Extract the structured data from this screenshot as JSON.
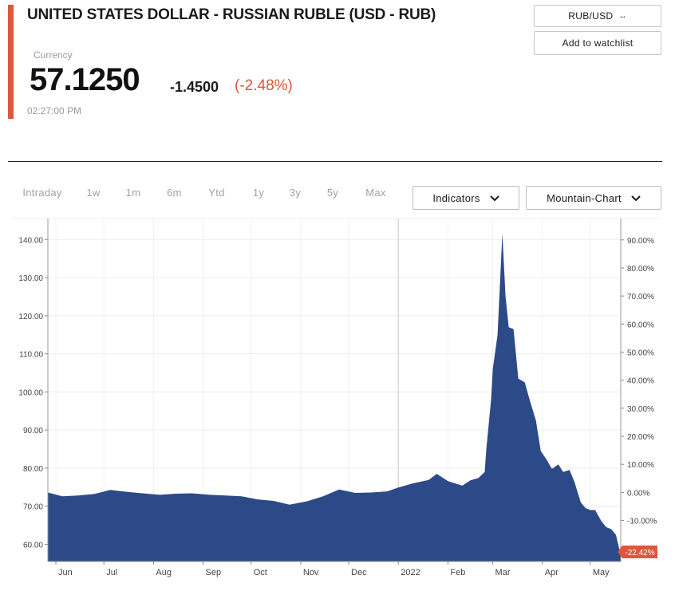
{
  "header": {
    "title": "UNITED STATES DOLLAR - RUSSIAN RUBLE (USD - RUB)",
    "subtype": "Currency",
    "price": "57.1250",
    "change": "-1.4500",
    "change_pct": "(-2.48%)",
    "time": "02:27:00 PM",
    "accent_color": "#e0563a"
  },
  "buttons": {
    "pair_label": "RUB/USD",
    "pair_icon": "swap-arrows-icon",
    "watchlist_label": "Add to watchlist"
  },
  "tabs": [
    {
      "label": "Intraday",
      "active": false
    },
    {
      "label": "1w",
      "active": false
    },
    {
      "label": "1m",
      "active": false
    },
    {
      "label": "6m",
      "active": false
    },
    {
      "label": "Ytd",
      "active": false
    },
    {
      "label": "1y",
      "active": true
    },
    {
      "label": "3y",
      "active": false
    },
    {
      "label": "5y",
      "active": false
    },
    {
      "label": "Max",
      "active": false
    }
  ],
  "dropdowns": {
    "indicators_label": "Indicators",
    "chart_type_label": "Mountain-Chart"
  },
  "chart_data": {
    "type": "area",
    "title": "",
    "xlabel": "",
    "ylabel": "",
    "fill_color": "#2c4a87",
    "grid": true,
    "x_tick_labels": [
      "Jun",
      "Jul",
      "Aug",
      "Sep",
      "Oct",
      "Nov",
      "Dec",
      "2022",
      "Feb",
      "Mar",
      "Apr",
      "May"
    ],
    "y_tick_labels": [
      "140.00",
      "130.00",
      "120.00",
      "110.00",
      "100.00",
      "90.00",
      "80.00",
      "70.00",
      "60.00"
    ],
    "y2_tick_labels": [
      "90.00%",
      "80.00%",
      "70.00%",
      "60.00%",
      "50.00%",
      "40.00%",
      "30.00%",
      "20.00%",
      "10.00%",
      "0.00%",
      "-10.00%",
      "-20.00%"
    ],
    "ylim": [
      55.5,
      145.5
    ],
    "y2_reference": 73.63,
    "current_change_label": "-22.42%",
    "current_change_color": "#e0563a",
    "x": [
      "2021-05-27",
      "2021-06-05",
      "2021-06-15",
      "2021-06-25",
      "2021-07-05",
      "2021-07-15",
      "2021-07-25",
      "2021-08-05",
      "2021-08-15",
      "2021-08-25",
      "2021-09-05",
      "2021-09-15",
      "2021-09-25",
      "2021-10-05",
      "2021-10-15",
      "2021-10-25",
      "2021-11-05",
      "2021-11-15",
      "2021-11-25",
      "2021-12-05",
      "2021-12-15",
      "2021-12-25",
      "2022-01-01",
      "2022-01-10",
      "2022-01-20",
      "2022-01-25",
      "2022-02-01",
      "2022-02-10",
      "2022-02-15",
      "2022-02-20",
      "2022-02-24",
      "2022-02-25",
      "2022-02-28",
      "2022-03-01",
      "2022-03-04",
      "2022-03-07",
      "2022-03-09",
      "2022-03-11",
      "2022-03-14",
      "2022-03-17",
      "2022-03-21",
      "2022-03-24",
      "2022-03-28",
      "2022-03-31",
      "2022-04-04",
      "2022-04-07",
      "2022-04-11",
      "2022-04-14",
      "2022-04-18",
      "2022-04-21",
      "2022-04-25",
      "2022-04-28",
      "2022-05-01",
      "2022-05-04",
      "2022-05-08",
      "2022-05-11",
      "2022-05-14",
      "2022-05-17",
      "2022-05-20"
    ],
    "values": [
      73.6,
      72.6,
      72.8,
      73.2,
      74.3,
      73.8,
      73.4,
      73.0,
      73.3,
      73.4,
      73.0,
      72.8,
      72.6,
      71.8,
      71.4,
      70.4,
      71.3,
      72.6,
      74.4,
      73.5,
      73.6,
      73.9,
      74.9,
      76.0,
      76.9,
      78.5,
      76.6,
      75.4,
      76.8,
      77.4,
      79.0,
      85.0,
      98.0,
      106.0,
      115.0,
      141.6,
      125.0,
      117.0,
      116.5,
      103.5,
      102.5,
      98.0,
      92.5,
      84.5,
      82.0,
      79.8,
      81.0,
      79.0,
      79.5,
      76.5,
      71.0,
      69.5,
      69.0,
      69.0,
      66.0,
      64.5,
      64.0,
      62.5,
      57.1
    ]
  }
}
